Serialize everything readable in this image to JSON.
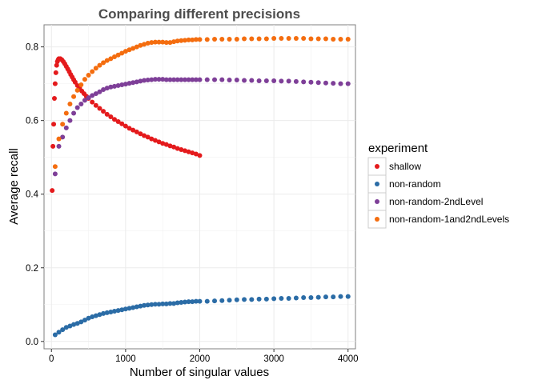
{
  "chart_data": {
    "type": "scatter",
    "title": "Comparing different precisions",
    "xlabel": "Number of singular values",
    "ylabel": "Average recall",
    "xlim": [
      -100,
      4100
    ],
    "ylim": [
      -0.02,
      0.86
    ],
    "xticks": [
      0,
      1000,
      2000,
      3000,
      4000
    ],
    "xtick_labels": [
      "0",
      "1000",
      "2000",
      "3000",
      "4000"
    ],
    "yticks": [
      0.0,
      0.2,
      0.4,
      0.6,
      0.8
    ],
    "ytick_labels": [
      "0.0",
      "0.2",
      "0.4",
      "0.6",
      "0.8"
    ],
    "grid": true,
    "legend": {
      "title": "experiment",
      "position": "right"
    },
    "series": [
      {
        "name": "shallow",
        "color": "#e41a1c",
        "points": [
          [
            10,
            0.41
          ],
          [
            20,
            0.53
          ],
          [
            30,
            0.59
          ],
          [
            40,
            0.66
          ],
          [
            50,
            0.7
          ],
          [
            60,
            0.73
          ],
          [
            70,
            0.75
          ],
          [
            80,
            0.76
          ],
          [
            90,
            0.765
          ],
          [
            100,
            0.768
          ],
          [
            120,
            0.768
          ],
          [
            140,
            0.765
          ],
          [
            160,
            0.76
          ],
          [
            180,
            0.754
          ],
          [
            200,
            0.747
          ],
          [
            220,
            0.74
          ],
          [
            240,
            0.733
          ],
          [
            260,
            0.725
          ],
          [
            280,
            0.718
          ],
          [
            300,
            0.711
          ],
          [
            320,
            0.704
          ],
          [
            350,
            0.695
          ],
          [
            380,
            0.688
          ],
          [
            410,
            0.68
          ],
          [
            440,
            0.673
          ],
          [
            470,
            0.666
          ],
          [
            500,
            0.66
          ],
          [
            550,
            0.65
          ],
          [
            600,
            0.641
          ],
          [
            650,
            0.633
          ],
          [
            700,
            0.625
          ],
          [
            750,
            0.617
          ],
          [
            800,
            0.61
          ],
          [
            850,
            0.603
          ],
          [
            900,
            0.597
          ],
          [
            950,
            0.591
          ],
          [
            1000,
            0.585
          ],
          [
            1050,
            0.579
          ],
          [
            1100,
            0.574
          ],
          [
            1150,
            0.569
          ],
          [
            1200,
            0.564
          ],
          [
            1250,
            0.559
          ],
          [
            1300,
            0.555
          ],
          [
            1350,
            0.55
          ],
          [
            1400,
            0.546
          ],
          [
            1450,
            0.542
          ],
          [
            1500,
            0.538
          ],
          [
            1550,
            0.535
          ],
          [
            1600,
            0.531
          ],
          [
            1650,
            0.528
          ],
          [
            1700,
            0.524
          ],
          [
            1750,
            0.521
          ],
          [
            1800,
            0.518
          ],
          [
            1850,
            0.515
          ],
          [
            1900,
            0.512
          ],
          [
            1950,
            0.509
          ],
          [
            2000,
            0.505
          ]
        ]
      },
      {
        "name": "non-random",
        "color": "#2b6ca6",
        "points": [
          [
            50,
            0.018
          ],
          [
            100,
            0.025
          ],
          [
            150,
            0.032
          ],
          [
            200,
            0.038
          ],
          [
            250,
            0.042
          ],
          [
            300,
            0.046
          ],
          [
            350,
            0.049
          ],
          [
            400,
            0.053
          ],
          [
            450,
            0.058
          ],
          [
            500,
            0.063
          ],
          [
            550,
            0.067
          ],
          [
            600,
            0.07
          ],
          [
            650,
            0.073
          ],
          [
            700,
            0.076
          ],
          [
            750,
            0.078
          ],
          [
            800,
            0.08
          ],
          [
            850,
            0.082
          ],
          [
            900,
            0.084
          ],
          [
            950,
            0.086
          ],
          [
            1000,
            0.088
          ],
          [
            1050,
            0.09
          ],
          [
            1100,
            0.092
          ],
          [
            1150,
            0.094
          ],
          [
            1200,
            0.096
          ],
          [
            1250,
            0.098
          ],
          [
            1300,
            0.099
          ],
          [
            1350,
            0.1
          ],
          [
            1400,
            0.101
          ],
          [
            1450,
            0.101
          ],
          [
            1500,
            0.102
          ],
          [
            1550,
            0.102
          ],
          [
            1600,
            0.103
          ],
          [
            1650,
            0.103
          ],
          [
            1700,
            0.105
          ],
          [
            1750,
            0.106
          ],
          [
            1800,
            0.107
          ],
          [
            1850,
            0.108
          ],
          [
            1900,
            0.108
          ],
          [
            1950,
            0.109
          ],
          [
            2000,
            0.109
          ],
          [
            2100,
            0.109
          ],
          [
            2200,
            0.11
          ],
          [
            2300,
            0.111
          ],
          [
            2400,
            0.112
          ],
          [
            2500,
            0.113
          ],
          [
            2600,
            0.114
          ],
          [
            2700,
            0.114
          ],
          [
            2800,
            0.115
          ],
          [
            2900,
            0.115
          ],
          [
            3000,
            0.116
          ],
          [
            3100,
            0.117
          ],
          [
            3200,
            0.117
          ],
          [
            3300,
            0.118
          ],
          [
            3400,
            0.119
          ],
          [
            3500,
            0.119
          ],
          [
            3600,
            0.12
          ],
          [
            3700,
            0.121
          ],
          [
            3800,
            0.121
          ],
          [
            3900,
            0.122
          ],
          [
            4000,
            0.122
          ]
        ]
      },
      {
        "name": "non-random-2ndLevel",
        "color": "#7e3f98",
        "points": [
          [
            50,
            0.455
          ],
          [
            100,
            0.53
          ],
          [
            150,
            0.555
          ],
          [
            200,
            0.58
          ],
          [
            250,
            0.6
          ],
          [
            300,
            0.62
          ],
          [
            350,
            0.635
          ],
          [
            400,
            0.645
          ],
          [
            450,
            0.655
          ],
          [
            500,
            0.662
          ],
          [
            550,
            0.668
          ],
          [
            600,
            0.673
          ],
          [
            650,
            0.678
          ],
          [
            700,
            0.684
          ],
          [
            750,
            0.688
          ],
          [
            800,
            0.691
          ],
          [
            850,
            0.693
          ],
          [
            900,
            0.695
          ],
          [
            950,
            0.697
          ],
          [
            1000,
            0.699
          ],
          [
            1050,
            0.701
          ],
          [
            1100,
            0.703
          ],
          [
            1150,
            0.705
          ],
          [
            1200,
            0.707
          ],
          [
            1250,
            0.709
          ],
          [
            1300,
            0.71
          ],
          [
            1350,
            0.711
          ],
          [
            1400,
            0.712
          ],
          [
            1450,
            0.712
          ],
          [
            1500,
            0.712
          ],
          [
            1550,
            0.711
          ],
          [
            1600,
            0.711
          ],
          [
            1650,
            0.711
          ],
          [
            1700,
            0.711
          ],
          [
            1750,
            0.711
          ],
          [
            1800,
            0.711
          ],
          [
            1850,
            0.711
          ],
          [
            1900,
            0.711
          ],
          [
            1950,
            0.711
          ],
          [
            2000,
            0.711
          ],
          [
            2100,
            0.711
          ],
          [
            2200,
            0.711
          ],
          [
            2300,
            0.711
          ],
          [
            2400,
            0.71
          ],
          [
            2500,
            0.71
          ],
          [
            2600,
            0.709
          ],
          [
            2700,
            0.709
          ],
          [
            2800,
            0.708
          ],
          [
            2900,
            0.708
          ],
          [
            3000,
            0.708
          ],
          [
            3100,
            0.707
          ],
          [
            3200,
            0.707
          ],
          [
            3300,
            0.706
          ],
          [
            3400,
            0.705
          ],
          [
            3500,
            0.704
          ],
          [
            3600,
            0.703
          ],
          [
            3700,
            0.702
          ],
          [
            3800,
            0.701
          ],
          [
            3900,
            0.7
          ],
          [
            4000,
            0.7
          ]
        ]
      },
      {
        "name": "non-random-1and2ndLevels",
        "color": "#f46d0f",
        "points": [
          [
            50,
            0.475
          ],
          [
            100,
            0.55
          ],
          [
            150,
            0.59
          ],
          [
            200,
            0.62
          ],
          [
            250,
            0.645
          ],
          [
            300,
            0.665
          ],
          [
            350,
            0.682
          ],
          [
            400,
            0.697
          ],
          [
            450,
            0.712
          ],
          [
            500,
            0.723
          ],
          [
            550,
            0.733
          ],
          [
            600,
            0.742
          ],
          [
            650,
            0.75
          ],
          [
            700,
            0.757
          ],
          [
            750,
            0.763
          ],
          [
            800,
            0.768
          ],
          [
            850,
            0.773
          ],
          [
            900,
            0.778
          ],
          [
            950,
            0.783
          ],
          [
            1000,
            0.788
          ],
          [
            1050,
            0.792
          ],
          [
            1100,
            0.796
          ],
          [
            1150,
            0.8
          ],
          [
            1200,
            0.804
          ],
          [
            1250,
            0.807
          ],
          [
            1300,
            0.81
          ],
          [
            1350,
            0.812
          ],
          [
            1400,
            0.813
          ],
          [
            1450,
            0.813
          ],
          [
            1500,
            0.813
          ],
          [
            1550,
            0.812
          ],
          [
            1600,
            0.812
          ],
          [
            1650,
            0.814
          ],
          [
            1700,
            0.816
          ],
          [
            1750,
            0.817
          ],
          [
            1800,
            0.818
          ],
          [
            1850,
            0.819
          ],
          [
            1900,
            0.819
          ],
          [
            1950,
            0.82
          ],
          [
            2000,
            0.82
          ],
          [
            2100,
            0.82
          ],
          [
            2200,
            0.821
          ],
          [
            2300,
            0.821
          ],
          [
            2400,
            0.821
          ],
          [
            2500,
            0.821
          ],
          [
            2600,
            0.822
          ],
          [
            2700,
            0.822
          ],
          [
            2800,
            0.822
          ],
          [
            2900,
            0.822
          ],
          [
            3000,
            0.823
          ],
          [
            3100,
            0.823
          ],
          [
            3200,
            0.823
          ],
          [
            3300,
            0.823
          ],
          [
            3400,
            0.823
          ],
          [
            3500,
            0.822
          ],
          [
            3600,
            0.822
          ],
          [
            3700,
            0.822
          ],
          [
            3800,
            0.821
          ],
          [
            3900,
            0.821
          ],
          [
            4000,
            0.821
          ]
        ]
      }
    ]
  }
}
